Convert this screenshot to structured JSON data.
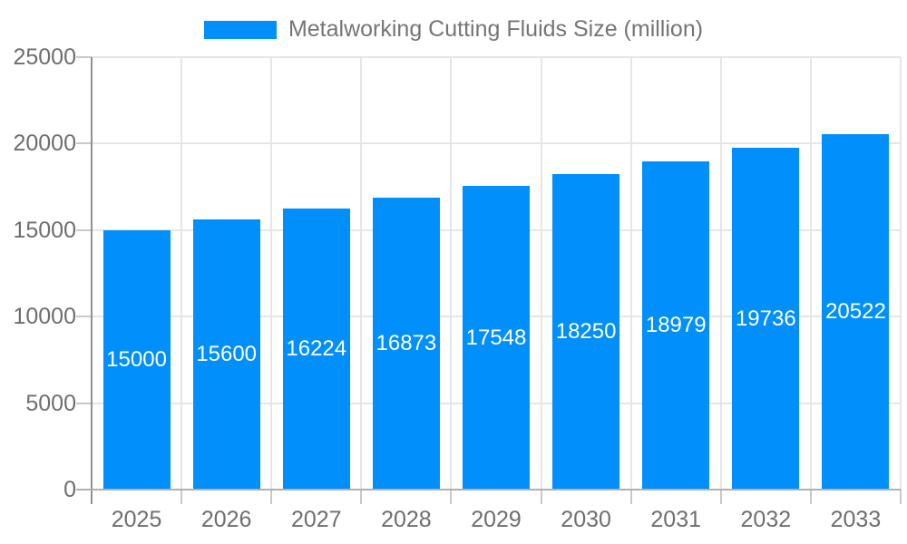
{
  "legend": {
    "label": "Metalworking Cutting Fluids Size (million)"
  },
  "chart_data": {
    "type": "bar",
    "title": "Metalworking Cutting Fluids Size (million)",
    "categories": [
      "2025",
      "2026",
      "2027",
      "2028",
      "2029",
      "2030",
      "2031",
      "2032",
      "2033"
    ],
    "values": [
      15000,
      15600,
      16224,
      16873,
      17548,
      18250,
      18979,
      19736,
      20522
    ],
    "xlabel": "",
    "ylabel": "",
    "ylim": [
      0,
      25000
    ],
    "yticks": [
      0,
      5000,
      10000,
      15000,
      20000,
      25000
    ],
    "grid": true,
    "legend_position": "top-center",
    "data_labels": "inside-center-white",
    "colors": {
      "bar": "#008FFB",
      "data_label": "#FFFFFF",
      "axis_text": "#6E6E6E",
      "legend_text": "#757575",
      "grid_line": "#E6E6E6",
      "y_axis_line": "#909090",
      "x_axis_line": "#B0B0B0"
    }
  }
}
